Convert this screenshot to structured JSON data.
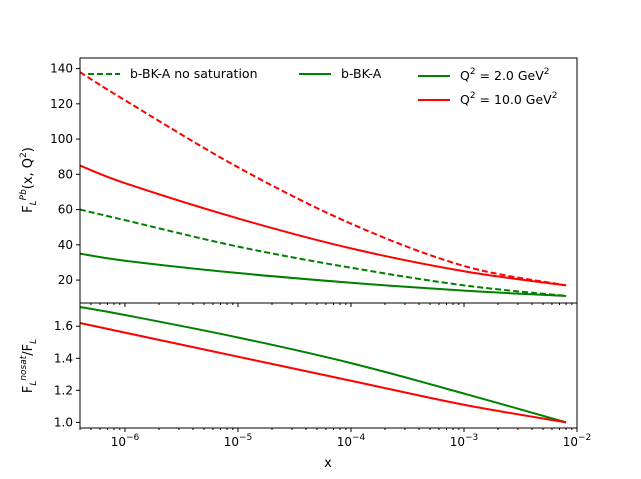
{
  "chart_data": [
    {
      "type": "line",
      "panel": "top",
      "ylabel_main": "F",
      "ylabel_sub": "L",
      "ylabel_sup": "Pb",
      "ylabel_rest": "(x, Q",
      "ylabel_rest_sup": "2",
      "ylabel_close": ")",
      "xscale": "log",
      "xlim": [
        4e-07,
        0.01
      ],
      "ylim": [
        7,
        146
      ],
      "yticks": [
        20,
        40,
        60,
        80,
        100,
        120,
        140
      ],
      "series": [
        {
          "name": "Q2=10.0 no saturation",
          "color": "#ff0000",
          "style": "dashed",
          "x": [
            4e-07,
            1e-06,
            1e-05,
            0.0001,
            0.001,
            0.008
          ],
          "y": [
            138,
            122,
            84,
            52,
            28,
            17
          ]
        },
        {
          "name": "Q2=10.0 b-BK-A",
          "color": "#ff0000",
          "style": "solid",
          "x": [
            4e-07,
            1e-06,
            1e-05,
            0.0001,
            0.001,
            0.008
          ],
          "y": [
            85,
            75,
            55,
            38,
            25,
            17
          ]
        },
        {
          "name": "Q2=2.0 no saturation",
          "color": "#008000",
          "style": "dashed",
          "x": [
            4e-07,
            1e-06,
            1e-05,
            0.0001,
            0.001,
            0.008
          ],
          "y": [
            60,
            54,
            39,
            27,
            17,
            11
          ]
        },
        {
          "name": "Q2=2.0 b-BK-A",
          "color": "#008000",
          "style": "solid",
          "x": [
            4e-07,
            1e-06,
            1e-05,
            0.0001,
            0.001,
            0.008
          ],
          "y": [
            35,
            31,
            24,
            18.5,
            14,
            11
          ]
        }
      ]
    },
    {
      "type": "line",
      "panel": "bottom",
      "ylabel_main": "F",
      "ylabel_sub": "L",
      "ylabel_sup": "nosat",
      "ylabel_rest": "/F",
      "ylabel_rest_sub": "L",
      "xlabel": "x",
      "xscale": "log",
      "xlim": [
        4e-07,
        0.01
      ],
      "ylim": [
        0.965,
        1.745
      ],
      "yticks": [
        1.0,
        1.2,
        1.4,
        1.6
      ],
      "ytick_labels": [
        "1.0",
        "1.2",
        "1.4",
        "1.6"
      ],
      "xtick_base": "10",
      "xtick_exponents": [
        "−6",
        "−5",
        "−4",
        "−3",
        "−2"
      ],
      "series": [
        {
          "name": "ratio Q2=2.0",
          "color": "#008000",
          "style": "solid",
          "x": [
            4e-07,
            1e-06,
            1e-05,
            0.0001,
            0.001,
            0.008
          ],
          "y": [
            1.72,
            1.67,
            1.53,
            1.37,
            1.18,
            1.0
          ]
        },
        {
          "name": "ratio Q2=10.0",
          "color": "#ff0000",
          "style": "solid",
          "x": [
            4e-07,
            1e-06,
            1e-05,
            0.0001,
            0.001,
            0.008
          ],
          "y": [
            1.62,
            1.56,
            1.41,
            1.26,
            1.11,
            1.0
          ]
        }
      ]
    }
  ],
  "legend": {
    "items": [
      {
        "label": "b-BK-A no saturation",
        "color": "#008000",
        "style": "dashed"
      },
      {
        "label": "b-BK-A",
        "color": "#008000",
        "style": "solid"
      },
      {
        "label_main": "Q",
        "label_sup": "2",
        "label_rest": " = 2.0 GeV",
        "label_unit_sup": "2",
        "color": "#008000",
        "style": "solid"
      },
      {
        "label_main": "Q",
        "label_sup": "2",
        "label_rest": " = 10.0 GeV",
        "label_unit_sup": "2",
        "color": "#ff0000",
        "style": "solid"
      }
    ]
  }
}
